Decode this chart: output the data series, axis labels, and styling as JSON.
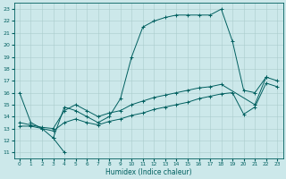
{
  "xlabel": "Humidex (Indice chaleur)",
  "xlim": [
    -0.5,
    23.5
  ],
  "ylim": [
    10.5,
    23.5
  ],
  "yticks": [
    11,
    12,
    13,
    14,
    15,
    16,
    17,
    18,
    19,
    20,
    21,
    22,
    23
  ],
  "xticks": [
    0,
    1,
    2,
    3,
    4,
    5,
    6,
    7,
    8,
    9,
    10,
    11,
    12,
    13,
    14,
    15,
    16,
    17,
    18,
    19,
    20,
    21,
    22,
    23
  ],
  "bg_color": "#cce8ea",
  "grid_color": "#aacccc",
  "line_color": "#005f5f",
  "curve1_x": [
    0,
    1,
    2,
    3,
    4,
    5,
    6,
    7,
    8,
    9,
    10,
    11,
    12,
    13,
    14,
    15,
    16,
    17,
    18,
    19,
    20,
    21,
    22
  ],
  "curve1_y": [
    16,
    13.5,
    13.0,
    12.2,
    14.8,
    14.5,
    14.0,
    13.5,
    14.0,
    15.5,
    19.0,
    21.5,
    22.0,
    22.3,
    22.5,
    22.5,
    22.5,
    22.5,
    23.0,
    20.3,
    16.2,
    16.0,
    17.3
  ],
  "curve2_x": [
    3,
    4
  ],
  "curve2_y": [
    12.2,
    11.0
  ],
  "curve3_x": [
    0,
    1,
    2,
    3,
    4,
    5,
    6,
    7,
    8,
    9,
    10,
    11,
    12,
    13,
    14,
    15,
    16,
    17,
    18,
    21,
    22,
    23
  ],
  "curve3_y": [
    13.5,
    13.3,
    13.1,
    13.0,
    14.5,
    15.0,
    14.5,
    14.0,
    14.3,
    14.5,
    15.0,
    15.3,
    15.6,
    15.8,
    16.0,
    16.2,
    16.4,
    16.5,
    16.7,
    15.0,
    17.3,
    17.0
  ],
  "curve4_x": [
    0,
    1,
    2,
    3,
    4,
    5,
    6,
    7,
    8,
    9,
    10,
    11,
    12,
    13,
    14,
    15,
    16,
    17,
    18,
    19,
    20,
    21,
    22,
    23
  ],
  "curve4_y": [
    13.2,
    13.2,
    13.0,
    12.8,
    13.5,
    13.8,
    13.5,
    13.3,
    13.6,
    13.8,
    14.1,
    14.3,
    14.6,
    14.8,
    15.0,
    15.2,
    15.5,
    15.7,
    15.9,
    16.0,
    14.2,
    14.8,
    16.8,
    16.5
  ]
}
